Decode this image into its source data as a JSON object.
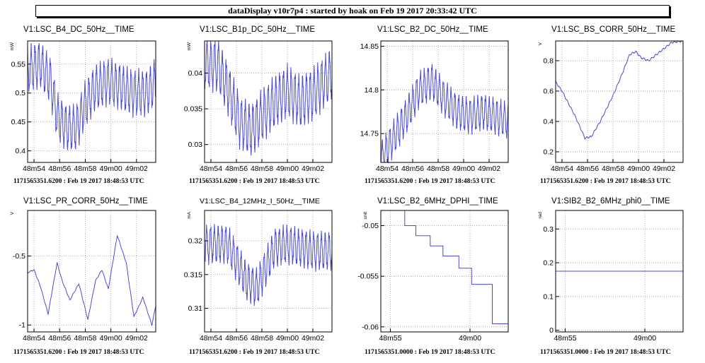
{
  "header": {
    "title": "dataDisplay v10r7p4 : started by hoak on Feb 19 2017 20:33:42 UTC"
  },
  "style": {
    "trace_color": "#4b4bd6",
    "grid_color": "#9a9a9a",
    "axis_color": "#000000"
  },
  "panels": [
    {
      "title": "V1:LSC_B4_DC_50Hz__TIME",
      "footer": "1171565351.6200 : Feb 19 2017 18:48:53 UTC"
    },
    {
      "title": "V1:LSC_B1p_DC_50Hz__TIME",
      "footer": "1171565351.6200 : Feb 19 2017 18:48:53 UTC"
    },
    {
      "title": "V1:LSC_B2_DC_50Hz__TIME",
      "footer": "1171565351.6200 : Feb 19 2017 18:48:53 UTC"
    },
    {
      "title": "V1:LSC_BS_CORR_50Hz__TIME",
      "footer": "1171565351.6200 : Feb 19 2017 18:48:53 UTC"
    },
    {
      "title": "V1:LSC_PR_CORR_50Hz__TIME",
      "footer": "1171565351.6200 : Feb 19 2017 18:48:53 UTC"
    },
    {
      "title": "V1:LSC_B4_12MHz_I_50Hz__TIME",
      "footer": "1171565351.6200 : Feb 19 2017 18:48:53 UTC"
    },
    {
      "title": "V1:LSC_B2_6MHz_DPHI__TIME",
      "footer": "1171565351.0000 : Feb 19 2017 18:48:53 UTC"
    },
    {
      "title": "V1:SIB2_B2_6MHz_phi0__TIME",
      "footer": "1171565351.0000 : Feb 19 2017 18:48:53 UTC"
    }
  ],
  "chart_data": [
    {
      "type": "line",
      "title": "V1:LSC_B4_DC_50Hz__TIME",
      "ylabel": "mW",
      "xlim": [
        53.5,
        63.5
      ],
      "ylim": [
        0.38,
        0.59
      ],
      "x_ticks": [
        {
          "v": 54,
          "label": "48m54"
        },
        {
          "v": 56,
          "label": "48m56"
        },
        {
          "v": 58,
          "label": "48m58"
        },
        {
          "v": 60,
          "label": "49m00"
        },
        {
          "v": 62,
          "label": "49m02"
        }
      ],
      "y_ticks": [
        {
          "v": 0.4,
          "label": "0.4"
        },
        {
          "v": 0.45,
          "label": "0.45"
        },
        {
          "v": 0.5,
          "label": "0.5"
        },
        {
          "v": 0.55,
          "label": "0.55"
        }
      ],
      "trend": [
        [
          53.5,
          0.54
        ],
        [
          54.5,
          0.55
        ],
        [
          55.3,
          0.52
        ],
        [
          55.8,
          0.46
        ],
        [
          56.5,
          0.44
        ],
        [
          57.3,
          0.44
        ],
        [
          58,
          0.48
        ],
        [
          58.8,
          0.51
        ],
        [
          59.8,
          0.52
        ],
        [
          60.8,
          0.51
        ],
        [
          61.8,
          0.5
        ],
        [
          62.8,
          0.5
        ],
        [
          63.5,
          0.52
        ]
      ],
      "osc_amp": 0.035,
      "osc_period": 0.3,
      "grid": true
    },
    {
      "type": "line",
      "title": "V1:LSC_B1p_DC_50Hz__TIME",
      "ylabel": "mW",
      "xlim": [
        53.5,
        63.5
      ],
      "ylim": [
        0.0275,
        0.0445
      ],
      "x_ticks": [
        {
          "v": 54,
          "label": "48m54"
        },
        {
          "v": 56,
          "label": "48m56"
        },
        {
          "v": 58,
          "label": "48m58"
        },
        {
          "v": 60,
          "label": "49m00"
        },
        {
          "v": 62,
          "label": "49m02"
        }
      ],
      "y_ticks": [
        {
          "v": 0.03,
          "label": "0.03"
        },
        {
          "v": 0.035,
          "label": "0.035"
        },
        {
          "v": 0.04,
          "label": "0.04"
        }
      ],
      "trend": [
        [
          53.5,
          0.0415
        ],
        [
          54.6,
          0.041
        ],
        [
          55.5,
          0.037
        ],
        [
          56.3,
          0.033
        ],
        [
          57.2,
          0.032
        ],
        [
          58,
          0.034
        ],
        [
          59,
          0.036
        ],
        [
          60,
          0.0375
        ],
        [
          61,
          0.036
        ],
        [
          62,
          0.037
        ],
        [
          63.5,
          0.04
        ]
      ],
      "osc_amp": 0.0032,
      "osc_period": 0.3,
      "grid": true
    },
    {
      "type": "line",
      "title": "V1:LSC_B2_DC_50Hz__TIME",
      "ylabel": "",
      "xlim": [
        53.5,
        63.5
      ],
      "ylim": [
        14.717,
        14.856
      ],
      "x_ticks": [
        {
          "v": 54,
          "label": "48m54"
        },
        {
          "v": 56,
          "label": "48m56"
        },
        {
          "v": 58,
          "label": "48m58"
        },
        {
          "v": 60,
          "label": "49m00"
        },
        {
          "v": 62,
          "label": "49m02"
        }
      ],
      "y_ticks": [
        {
          "v": 14.75,
          "label": "14.75"
        },
        {
          "v": 14.8,
          "label": "14.8"
        },
        {
          "v": 14.85,
          "label": "14.85"
        }
      ],
      "trend": [
        [
          53.5,
          14.72
        ],
        [
          54.5,
          14.745
        ],
        [
          55.5,
          14.77
        ],
        [
          56.5,
          14.8
        ],
        [
          57.5,
          14.81
        ],
        [
          58.5,
          14.79
        ],
        [
          59.5,
          14.775
        ],
        [
          60.5,
          14.77
        ],
        [
          61.5,
          14.775
        ],
        [
          62.5,
          14.77
        ],
        [
          63.5,
          14.765
        ]
      ],
      "osc_amp": 0.018,
      "osc_period": 0.3,
      "grid": true
    },
    {
      "type": "line",
      "title": "V1:LSC_BS_CORR_50Hz__TIME",
      "ylabel": "V",
      "xlim": [
        53.5,
        63.5
      ],
      "ylim": [
        0.13,
        0.93
      ],
      "x_ticks": [
        {
          "v": 54,
          "label": "48m54"
        },
        {
          "v": 56,
          "label": "48m56"
        },
        {
          "v": 58,
          "label": "48m58"
        },
        {
          "v": 60,
          "label": "49m00"
        },
        {
          "v": 62,
          "label": "49m02"
        }
      ],
      "y_ticks": [
        {
          "v": 0.2,
          "label": "0.2"
        },
        {
          "v": 0.4,
          "label": "0.4"
        },
        {
          "v": 0.6,
          "label": "0.6"
        },
        {
          "v": 0.8,
          "label": "0.8"
        }
      ],
      "trend": [
        [
          53.5,
          0.66
        ],
        [
          54,
          0.6
        ],
        [
          55,
          0.44
        ],
        [
          55.8,
          0.29
        ],
        [
          56.3,
          0.3
        ],
        [
          57,
          0.4
        ],
        [
          58,
          0.57
        ],
        [
          58.8,
          0.73
        ],
        [
          59.3,
          0.84
        ],
        [
          59.8,
          0.86
        ],
        [
          60.2,
          0.82
        ],
        [
          60.8,
          0.8
        ],
        [
          61.4,
          0.84
        ],
        [
          62,
          0.88
        ],
        [
          62.6,
          0.92
        ],
        [
          63.5,
          0.93
        ]
      ],
      "osc_amp": 0.005,
      "osc_period": 0.3,
      "grid": true
    },
    {
      "type": "line",
      "title": "V1:LSC_PR_CORR_50Hz__TIME",
      "ylabel": "V",
      "xlim": [
        53.5,
        63.5
      ],
      "ylim": [
        -1.05,
        -0.17
      ],
      "x_ticks": [
        {
          "v": 54,
          "label": "48m54"
        },
        {
          "v": 56,
          "label": "48m56"
        },
        {
          "v": 58,
          "label": "48m58"
        },
        {
          "v": 60,
          "label": "49m00"
        },
        {
          "v": 62,
          "label": "49m02"
        }
      ],
      "y_ticks": [
        {
          "v": -1,
          "label": "-1"
        },
        {
          "v": -0.5,
          "label": "-0.5"
        }
      ],
      "trend": [
        [
          53.5,
          -0.62
        ],
        [
          54,
          -0.6
        ],
        [
          54.5,
          -0.72
        ],
        [
          55.1,
          -0.92
        ],
        [
          55.8,
          -0.55
        ],
        [
          56.2,
          -0.68
        ],
        [
          56.8,
          -0.82
        ],
        [
          57.5,
          -0.7
        ],
        [
          58.2,
          -0.96
        ],
        [
          58.8,
          -0.68
        ],
        [
          59.3,
          -0.6
        ],
        [
          59.8,
          -0.74
        ],
        [
          60.5,
          -0.35
        ],
        [
          61.2,
          -0.55
        ],
        [
          61.8,
          -0.94
        ],
        [
          62.5,
          -0.8
        ],
        [
          63.2,
          -1.0
        ],
        [
          63.5,
          -0.86
        ]
      ],
      "osc_amp": 0.004,
      "osc_period": 0.3,
      "grid": true
    },
    {
      "type": "line",
      "title": "V1:LSC_B4_12MHz_I_50Hz__TIME",
      "ylabel": "mA",
      "xlim": [
        53.5,
        63.5
      ],
      "ylim": [
        0.3065,
        0.3245
      ],
      "x_ticks": [
        {
          "v": 54,
          "label": "48m54"
        },
        {
          "v": 56,
          "label": "48m56"
        },
        {
          "v": 58,
          "label": "48m58"
        },
        {
          "v": 60,
          "label": "49m00"
        },
        {
          "v": 62,
          "label": "49m02"
        }
      ],
      "y_ticks": [
        {
          "v": 0.31,
          "label": "0.31"
        },
        {
          "v": 0.315,
          "label": "0.315"
        },
        {
          "v": 0.32,
          "label": "0.32"
        }
      ],
      "trend": [
        [
          53.5,
          0.3195
        ],
        [
          55.3,
          0.3195
        ],
        [
          56,
          0.317
        ],
        [
          56.8,
          0.314
        ],
        [
          57.6,
          0.313
        ],
        [
          58.3,
          0.316
        ],
        [
          59,
          0.319
        ],
        [
          60,
          0.3195
        ],
        [
          61,
          0.319
        ],
        [
          62,
          0.3185
        ],
        [
          63.5,
          0.3185
        ]
      ],
      "osc_amp": 0.0025,
      "osc_period": 0.3,
      "grid": true
    },
    {
      "type": "line",
      "title": "V1:LSC_B2_6MHz_DPHI__TIME",
      "ylabel": "unit",
      "xlim": [
        54.4,
        62.4
      ],
      "ylim": [
        -0.0605,
        -0.0485
      ],
      "x_ticks": [
        {
          "v": 55,
          "label": "48m55"
        },
        {
          "v": 60,
          "label": "49m00"
        }
      ],
      "y_ticks": [
        {
          "v": -0.06,
          "label": "-0.06"
        },
        {
          "v": -0.055,
          "label": "-0.055"
        },
        {
          "v": -0.05,
          "label": "-0.05"
        }
      ],
      "steps": {
        "x": [
          54.4,
          55.9,
          56.6,
          57.5,
          58.3,
          59.3,
          60.1,
          61.4,
          62.4
        ],
        "y": [
          -0.0485,
          -0.05,
          -0.051,
          -0.052,
          -0.053,
          -0.0542,
          -0.0558,
          -0.0597,
          -0.0605
        ]
      },
      "grid": true
    },
    {
      "type": "line",
      "title": "V1:SIB2_B2_6MHz_phi0__TIME",
      "ylabel": "rad",
      "xlim": [
        54.4,
        62.4
      ],
      "ylim": [
        -0.005,
        0.355
      ],
      "x_ticks": [
        {
          "v": 55,
          "label": "48m55"
        },
        {
          "v": 60,
          "label": "49m00"
        }
      ],
      "y_ticks": [
        {
          "v": 0,
          "label": "0"
        },
        {
          "v": 0.1,
          "label": "0.1"
        },
        {
          "v": 0.2,
          "label": "0.2"
        },
        {
          "v": 0.3,
          "label": "0.3"
        }
      ],
      "constant": 0.175,
      "grid": true
    }
  ]
}
